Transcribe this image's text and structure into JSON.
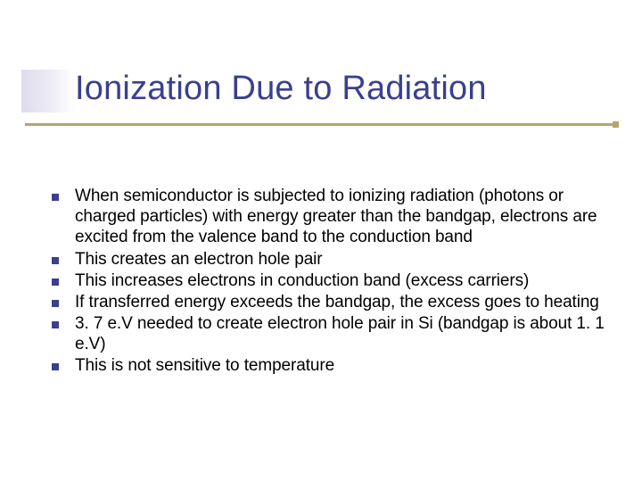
{
  "slide": {
    "title": "Ionization Due to Radiation",
    "bullets": [
      "When semiconductor is subjected to ionizing radiation (photons or charged particles) with energy greater than the bandgap, electrons are excited from the valence band to the conduction band",
      "This creates an electron hole pair",
      "This increases electrons in conduction band (excess carriers)",
      "If transferred energy exceeds the bandgap, the excess goes to heating",
      "3. 7 e.V needed to create electron hole pair in Si (bandgap is about 1. 1 e.V)",
      "This is not sensitive to temperature"
    ]
  },
  "style": {
    "background_color": "#ffffff",
    "title_color": "#3a3f8f",
    "title_fontsize": 38,
    "title_font": "Verdana",
    "bullet_marker_color": "#3a3f8f",
    "bullet_marker_size": 8,
    "body_color": "#000000",
    "body_fontsize": 19,
    "body_font": "Verdana",
    "rule_color": "#b4a46e",
    "rule_width": 3,
    "title_shadow_gradient": [
      "#d9d6e8",
      "#e8e6f2",
      "#ffffff"
    ]
  }
}
